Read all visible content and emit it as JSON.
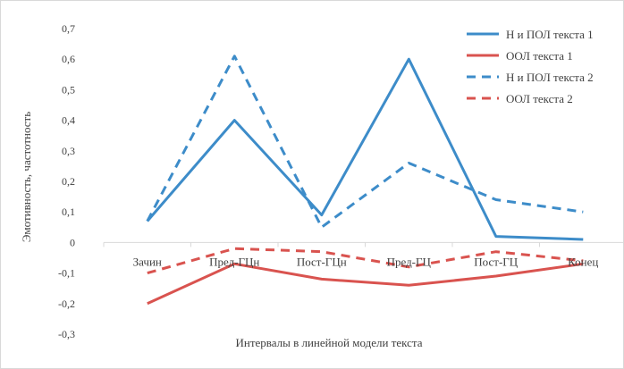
{
  "chart_data": {
    "type": "line",
    "title": "",
    "xlabel": "Интервалы в линейной модели текста",
    "ylabel": "Эмотивность, частотность",
    "categories": [
      "Зачин",
      "Пред-ГЦн",
      "Пост-ГЦн",
      "Пред-ГЦ",
      "Пост-ГЦ",
      "Конец"
    ],
    "ylim": [
      -0.3,
      0.7
    ],
    "yticks": [
      "-0,3",
      "-0,2",
      "-0,1",
      "0",
      "0,1",
      "0,2",
      "0,3",
      "0,4",
      "0,5",
      "0,6",
      "0,7"
    ],
    "grid": false,
    "legend_position": "top-right",
    "series": [
      {
        "name": "Н и ПОЛ текста 1",
        "values": [
          0.07,
          0.4,
          0.09,
          0.6,
          0.02,
          0.01
        ],
        "color": "#3d8cc9",
        "dash": "solid"
      },
      {
        "name": "ООЛ текста 1",
        "values": [
          -0.2,
          -0.07,
          -0.12,
          -0.14,
          -0.11,
          -0.07
        ],
        "color": "#d9534f",
        "dash": "solid"
      },
      {
        "name": "Н и ПОЛ текста 2",
        "values": [
          0.07,
          0.61,
          0.05,
          0.26,
          0.14,
          0.1
        ],
        "color": "#3d8cc9",
        "dash": "dashed"
      },
      {
        "name": "ООЛ текста 2",
        "values": [
          -0.1,
          -0.02,
          -0.03,
          -0.08,
          -0.03,
          -0.06
        ],
        "color": "#d9534f",
        "dash": "dashed"
      }
    ]
  }
}
